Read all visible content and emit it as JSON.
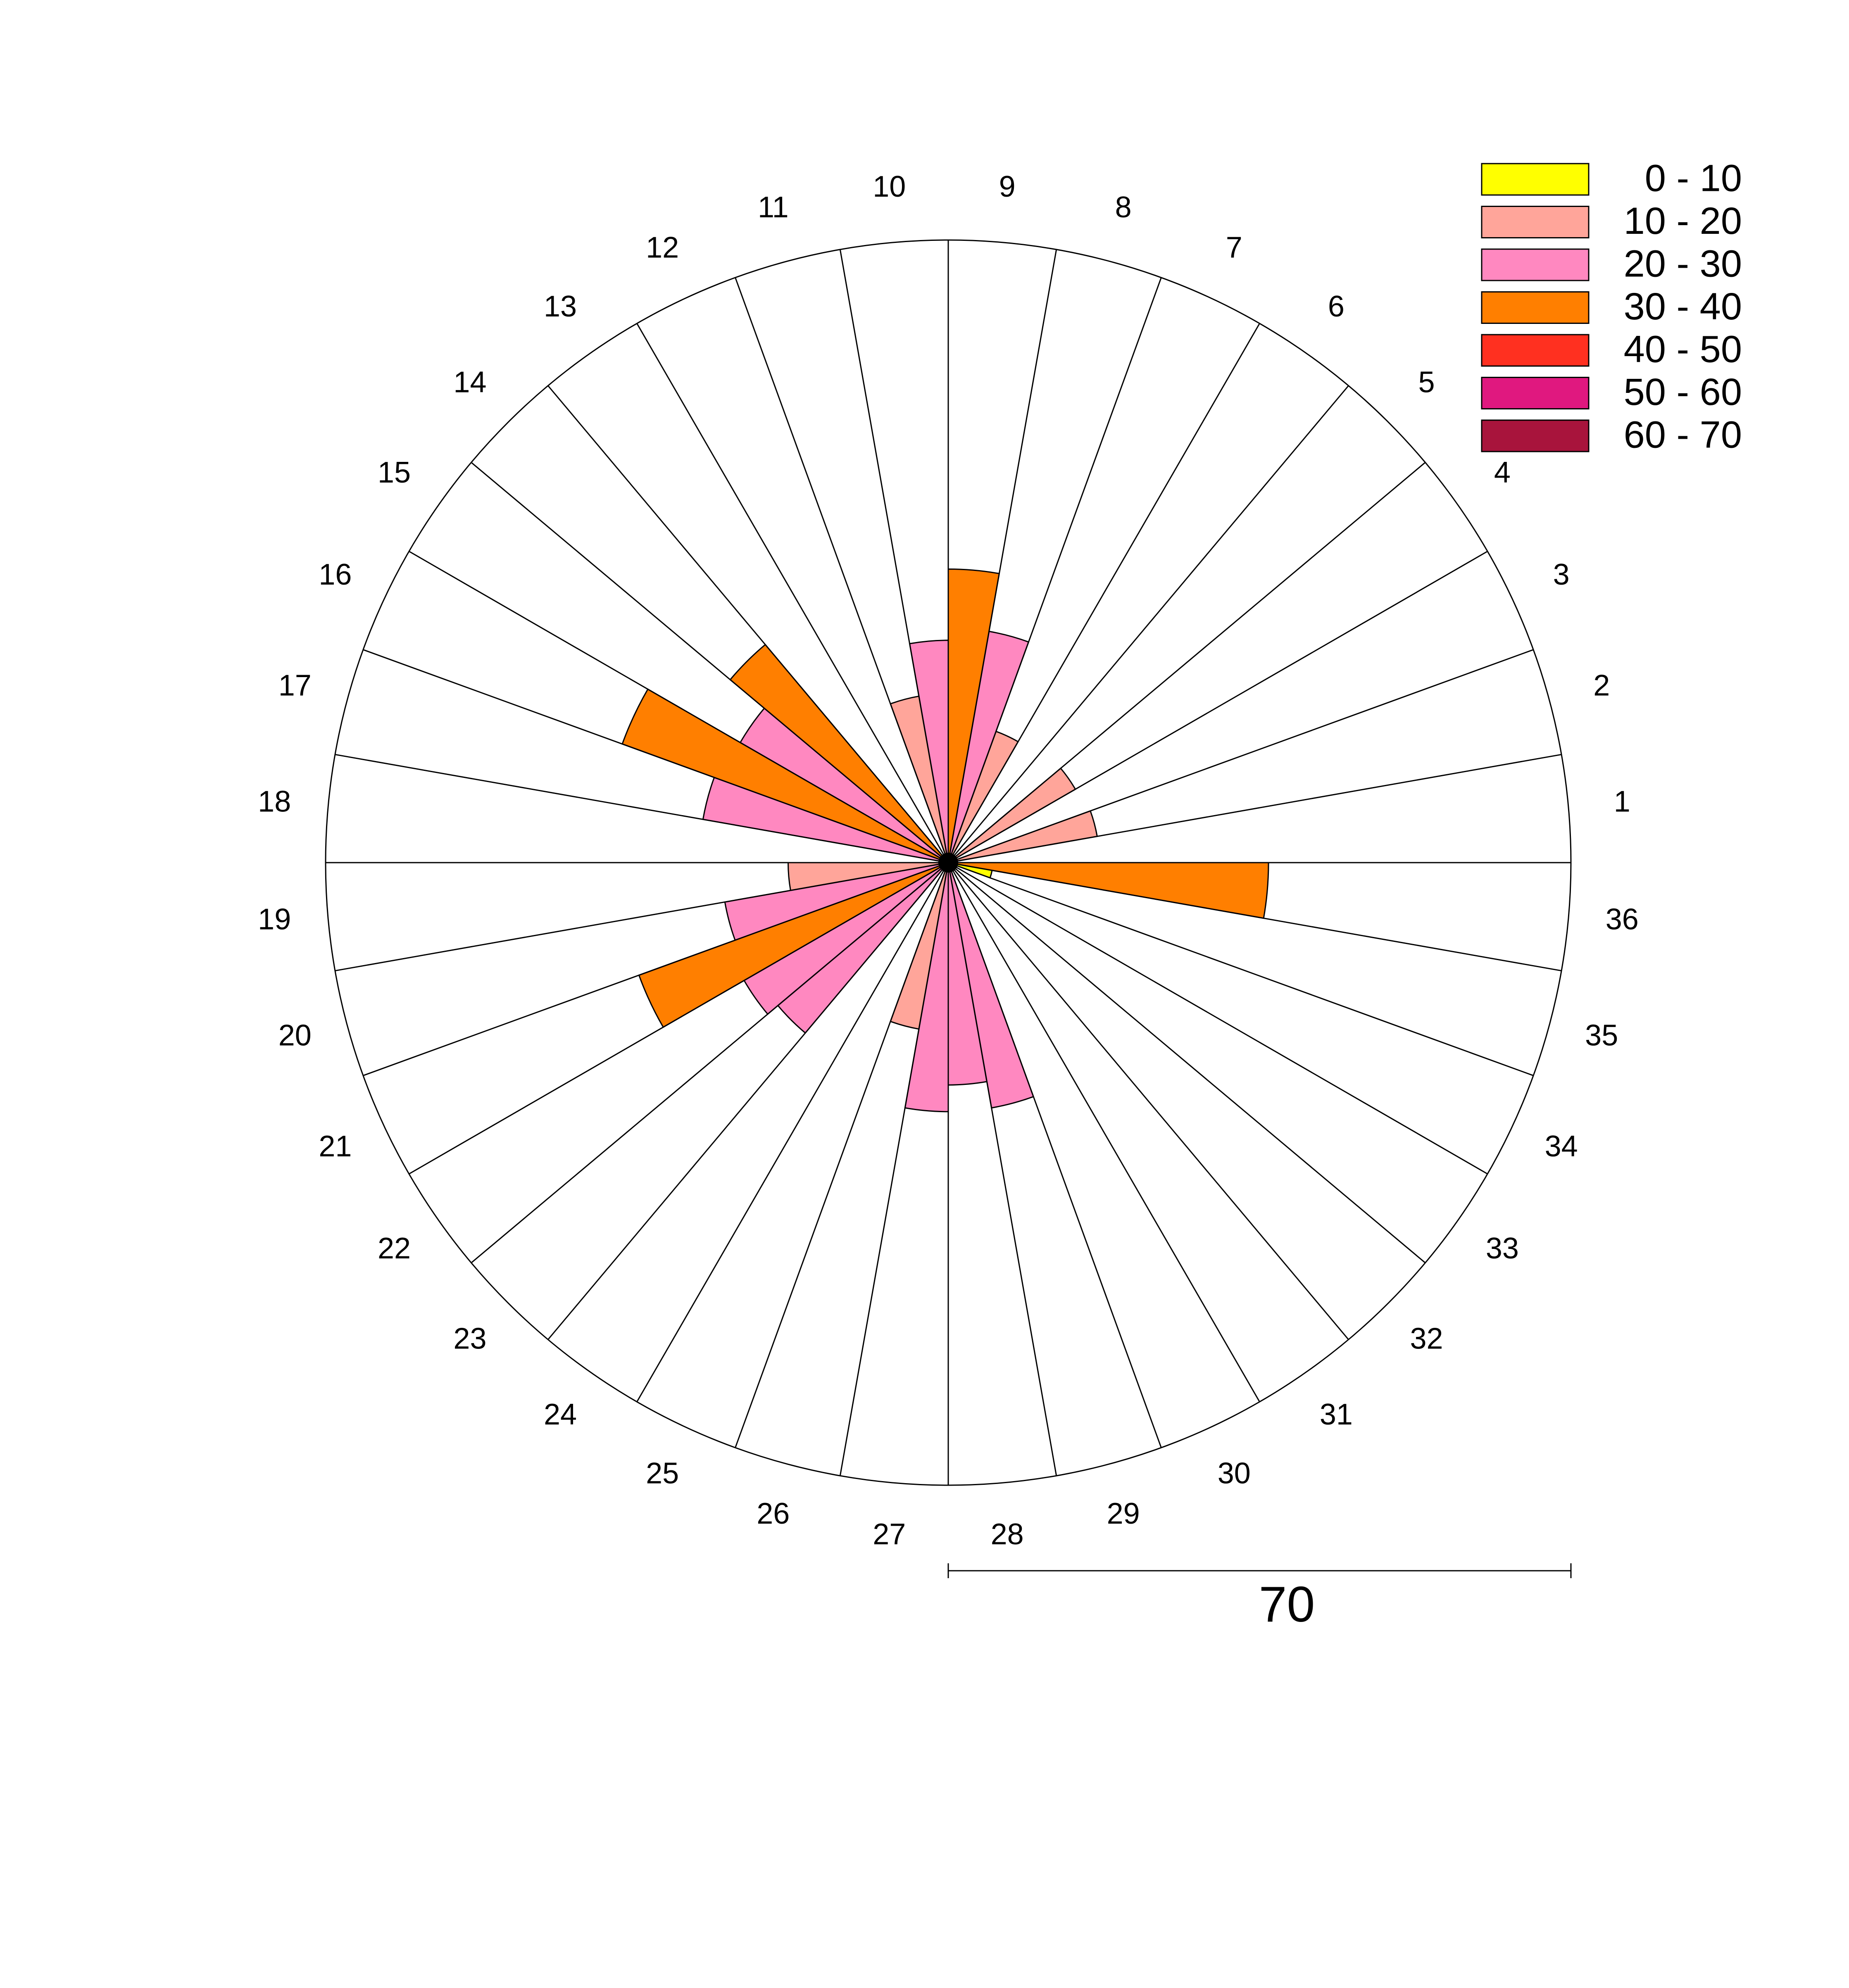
{
  "chart_data": {
    "type": "rose",
    "categories": [
      "1",
      "2",
      "3",
      "4",
      "5",
      "6",
      "7",
      "8",
      "9",
      "10",
      "11",
      "12",
      "13",
      "14",
      "15",
      "16",
      "17",
      "18",
      "19",
      "20",
      "21",
      "22",
      "23",
      "24",
      "25",
      "26",
      "27",
      "28",
      "29",
      "30",
      "31",
      "32",
      "33",
      "34",
      "35",
      "36"
    ],
    "rlim": [
      0,
      70
    ],
    "legend": "top-right",
    "series": [
      {
        "name": "0 - 10",
        "color": "#ffff00",
        "values": [
          null,
          null,
          null,
          null,
          null,
          null,
          null,
          null,
          null,
          null,
          null,
          null,
          null,
          null,
          null,
          null,
          null,
          null,
          null,
          null,
          null,
          null,
          null,
          null,
          null,
          null,
          null,
          null,
          null,
          null,
          null,
          null,
          null,
          null,
          5,
          null
        ]
      },
      {
        "name": "10 - 20",
        "color": "#ffa59a",
        "values": [
          null,
          17,
          null,
          16.5,
          null,
          null,
          15.7,
          null,
          null,
          null,
          19,
          null,
          null,
          null,
          null,
          null,
          null,
          null,
          18,
          null,
          null,
          null,
          null,
          null,
          null,
          19,
          null,
          null,
          null,
          null,
          null,
          null,
          null,
          null,
          null,
          null
        ]
      },
      {
        "name": "20 - 30",
        "color": "#ff88c0",
        "values": [
          null,
          null,
          null,
          null,
          null,
          null,
          null,
          26.4,
          null,
          25,
          null,
          null,
          null,
          null,
          27,
          null,
          28,
          null,
          null,
          25.5,
          null,
          26.5,
          25,
          null,
          null,
          null,
          28,
          25,
          28,
          null,
          null,
          null,
          null,
          null,
          null,
          null
        ]
      },
      {
        "name": "30 - 40",
        "color": "#ff7f00",
        "values": [
          null,
          null,
          null,
          null,
          null,
          null,
          null,
          null,
          33,
          null,
          null,
          null,
          null,
          32,
          null,
          39,
          null,
          null,
          null,
          null,
          37,
          null,
          null,
          null,
          null,
          null,
          null,
          null,
          null,
          null,
          null,
          null,
          null,
          null,
          null,
          36
        ]
      },
      {
        "name": "40 - 50",
        "color": "#ff3020",
        "values": [
          null,
          null,
          null,
          null,
          null,
          null,
          null,
          null,
          null,
          null,
          null,
          null,
          null,
          null,
          null,
          null,
          null,
          null,
          null,
          null,
          null,
          null,
          null,
          null,
          null,
          null,
          null,
          null,
          null,
          null,
          null,
          null,
          null,
          null,
          null,
          null
        ]
      },
      {
        "name": "50 - 60",
        "color": "#e0187f",
        "values": [
          null,
          null,
          null,
          null,
          null,
          null,
          null,
          null,
          null,
          null,
          null,
          null,
          null,
          null,
          null,
          null,
          null,
          null,
          null,
          null,
          null,
          null,
          null,
          null,
          null,
          null,
          null,
          null,
          null,
          null,
          null,
          null,
          null,
          null,
          null,
          null
        ]
      },
      {
        "name": "60 - 70",
        "color": "#a8143c",
        "values": [
          null,
          null,
          null,
          null,
          null,
          null,
          null,
          null,
          null,
          null,
          null,
          null,
          null,
          null,
          null,
          null,
          null,
          null,
          null,
          null,
          null,
          null,
          null,
          null,
          null,
          null,
          null,
          null,
          null,
          null,
          null,
          null,
          null,
          null,
          null,
          null
        ]
      }
    ]
  }
}
